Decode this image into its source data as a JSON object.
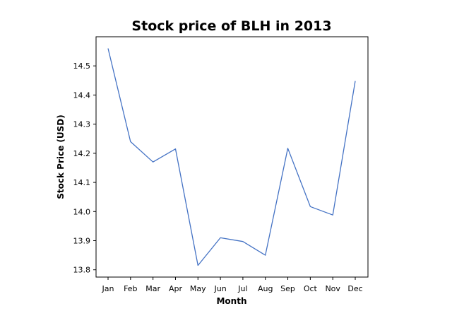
{
  "chart_data": {
    "type": "line",
    "title": "Stock price of BLH in 2013",
    "xlabel": "Month",
    "ylabel": "Stock Price (USD)",
    "categories": [
      "Jan",
      "Feb",
      "Mar",
      "Apr",
      "May",
      "Jun",
      "Jul",
      "Aug",
      "Sep",
      "Oct",
      "Nov",
      "Dec"
    ],
    "series": [
      {
        "values": [
          14.56,
          14.24,
          14.17,
          14.215,
          13.815,
          13.91,
          13.897,
          13.85,
          14.217,
          14.017,
          13.988,
          14.448
        ],
        "color": "#4472c4"
      }
    ],
    "ylim": [
      13.775,
      14.6
    ],
    "yticks": [
      13.8,
      13.9,
      14.0,
      14.1,
      14.2,
      14.3,
      14.4,
      14.5
    ],
    "ytick_labels": [
      "13.8",
      "13.9",
      "14.0",
      "14.1",
      "14.2",
      "14.3",
      "14.4",
      "14.5"
    ],
    "grid": false,
    "legend": "none"
  }
}
